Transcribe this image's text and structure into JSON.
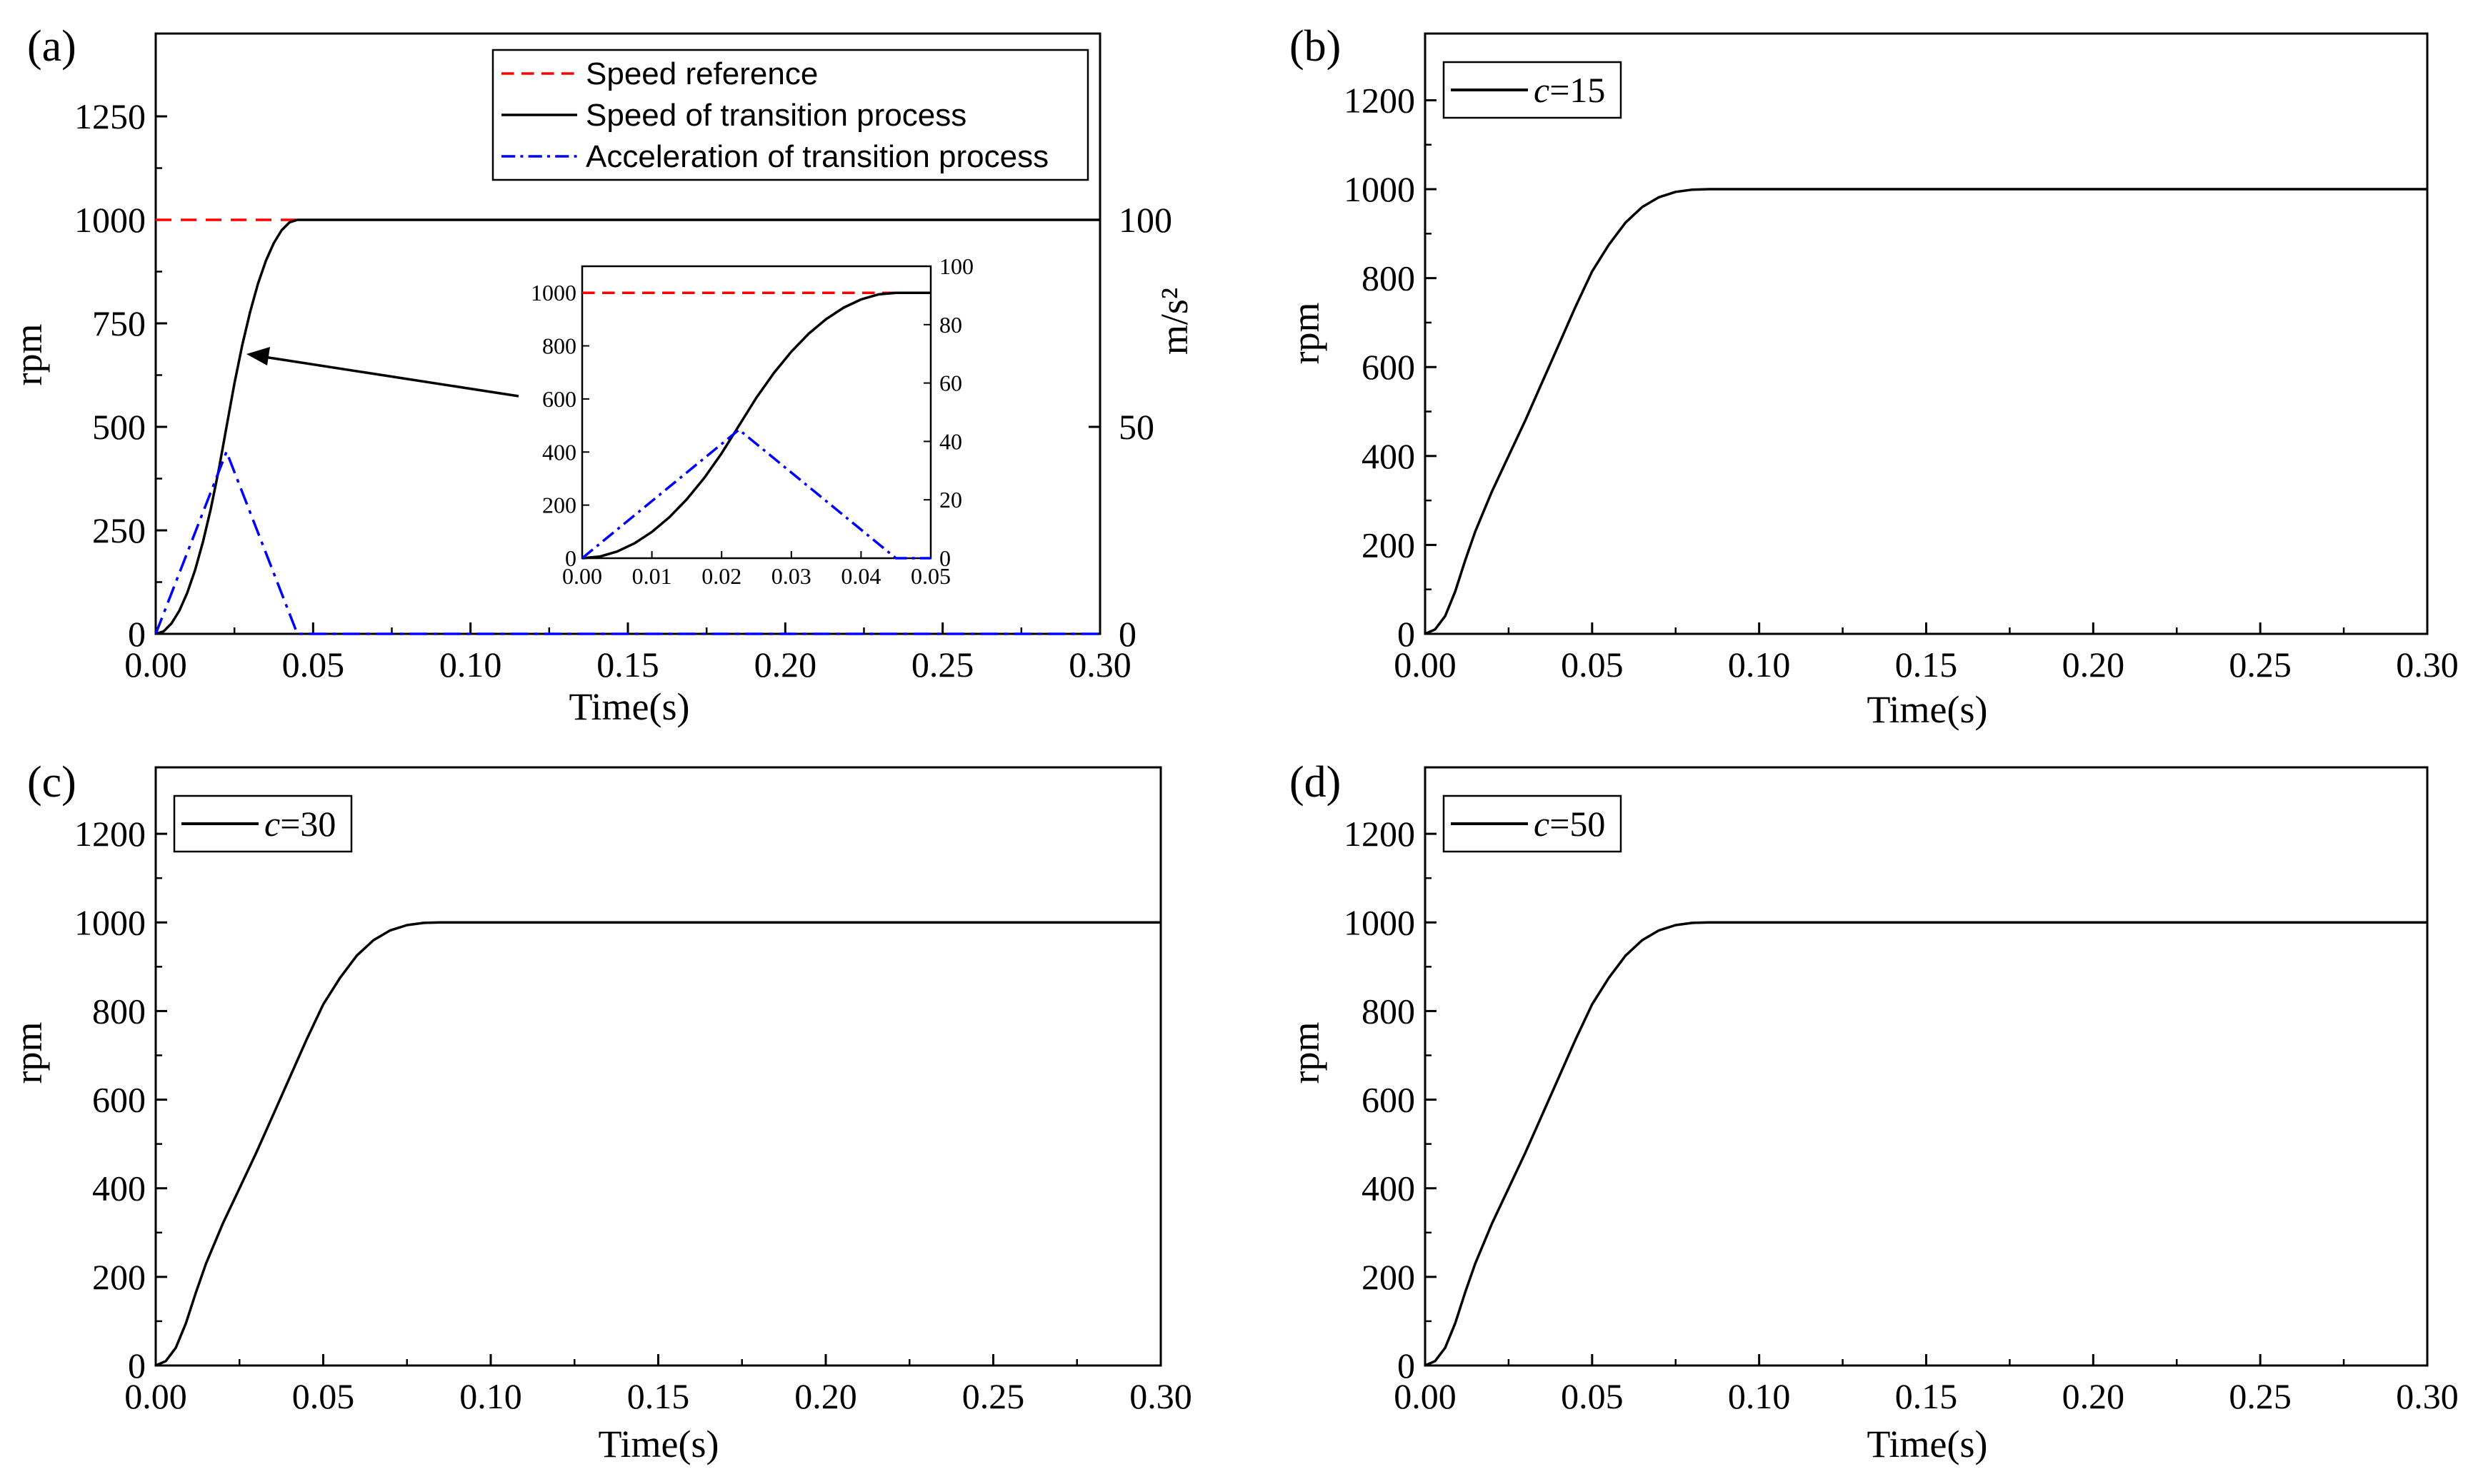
{
  "chart_data": [
    {
      "id": "a",
      "type": "line",
      "panel_label": "(a)",
      "xlabel": "Time(s)",
      "ylabel": "rpm",
      "ylabel_right": "m/s²",
      "xlim": [
        0,
        0.3
      ],
      "ylim": [
        0,
        1450
      ],
      "ylim_right": [
        0,
        145
      ],
      "x_ticks": [
        "0.00",
        "0.05",
        "0.10",
        "0.15",
        "0.20",
        "0.25",
        "0.30"
      ],
      "y_ticks": [
        "0",
        "250",
        "500",
        "750",
        "1000",
        "1250"
      ],
      "y_ticks_right": [
        "0",
        "50",
        "100"
      ],
      "legend": [
        "Speed reference",
        "Speed of transition process",
        "Acceleration of transition process"
      ],
      "series": [
        {
          "name": "Speed reference",
          "color": "#ff0000",
          "style": "dashed",
          "axis": "left",
          "x": [
            0,
            0.045
          ],
          "y": [
            1000,
            1000
          ]
        },
        {
          "name": "Speed of transition process",
          "color": "#000000",
          "style": "solid",
          "axis": "left",
          "x": [
            0,
            0.0025,
            0.005,
            0.0075,
            0.01,
            0.0125,
            0.015,
            0.0175,
            0.02,
            0.0225,
            0.025,
            0.0275,
            0.03,
            0.0325,
            0.035,
            0.0375,
            0.04,
            0.0425,
            0.045,
            0.3
          ],
          "y": [
            0,
            6,
            25,
            56,
            99,
            154,
            222,
            302,
            395,
            500,
            605,
            698,
            778,
            846,
            901,
            944,
            975,
            994,
            1000,
            1000
          ]
        },
        {
          "name": "Acceleration of transition process",
          "color": "#0000ff",
          "style": "dashdot",
          "axis": "right",
          "x": [
            0,
            0.0225,
            0.045,
            0.3
          ],
          "y": [
            0,
            44,
            0,
            0
          ]
        }
      ],
      "inset": {
        "xlim": [
          0,
          0.05
        ],
        "ylim": [
          0,
          1100
        ],
        "ylim_right": [
          0,
          100
        ],
        "x_ticks": [
          "0.00",
          "0.01",
          "0.02",
          "0.03",
          "0.04",
          "0.05"
        ],
        "y_ticks": [
          "0",
          "200",
          "400",
          "600",
          "800",
          "1000"
        ],
        "y_ticks_right": [
          "0",
          "20",
          "40",
          "60",
          "80",
          "100"
        ]
      }
    },
    {
      "id": "b",
      "type": "line",
      "panel_label": "(b)",
      "xlabel": "Time(s)",
      "ylabel": "rpm",
      "xlim": [
        0,
        0.3
      ],
      "ylim": [
        0,
        1350
      ],
      "x_ticks": [
        "0.00",
        "0.05",
        "0.10",
        "0.15",
        "0.20",
        "0.25",
        "0.30"
      ],
      "y_ticks": [
        "0",
        "200",
        "400",
        "600",
        "800",
        "1000",
        "1200"
      ],
      "legend_c": "c",
      "legend_value": "=15",
      "series": [
        {
          "name": "c=15",
          "color": "#000000",
          "style": "solid",
          "x": [
            0,
            0.003,
            0.006,
            0.009,
            0.012,
            0.015,
            0.02,
            0.025,
            0.03,
            0.035,
            0.04,
            0.045,
            0.05,
            0.055,
            0.06,
            0.065,
            0.07,
            0.075,
            0.08,
            0.085,
            0.09,
            0.3
          ],
          "y": [
            0,
            10,
            40,
            95,
            165,
            230,
            320,
            400,
            480,
            565,
            650,
            735,
            815,
            875,
            925,
            960,
            982,
            994,
            999,
            1000,
            1000,
            1000
          ]
        }
      ]
    },
    {
      "id": "c",
      "type": "line",
      "panel_label": "(c)",
      "xlabel": "Time(s)",
      "ylabel": "rpm",
      "xlim": [
        0,
        0.3
      ],
      "ylim": [
        0,
        1350
      ],
      "x_ticks": [
        "0.00",
        "0.05",
        "0.10",
        "0.15",
        "0.20",
        "0.25",
        "0.30"
      ],
      "y_ticks": [
        "0",
        "200",
        "400",
        "600",
        "800",
        "1000",
        "1200"
      ],
      "legend_c": "c",
      "legend_value": "=30",
      "series": [
        {
          "name": "c=30",
          "color": "#000000",
          "style": "solid",
          "x": [
            0,
            0.003,
            0.006,
            0.009,
            0.012,
            0.015,
            0.02,
            0.025,
            0.03,
            0.035,
            0.04,
            0.045,
            0.05,
            0.055,
            0.06,
            0.065,
            0.07,
            0.075,
            0.08,
            0.085,
            0.09,
            0.3
          ],
          "y": [
            0,
            10,
            40,
            95,
            165,
            230,
            320,
            400,
            480,
            565,
            650,
            735,
            815,
            875,
            925,
            960,
            982,
            994,
            999,
            1000,
            1000,
            1000
          ]
        }
      ]
    },
    {
      "id": "d",
      "type": "line",
      "panel_label": "(d)",
      "xlabel": "Time(s)",
      "ylabel": "rpm",
      "xlim": [
        0,
        0.3
      ],
      "ylim": [
        0,
        1350
      ],
      "x_ticks": [
        "0.00",
        "0.05",
        "0.10",
        "0.15",
        "0.20",
        "0.25",
        "0.30"
      ],
      "y_ticks": [
        "0",
        "200",
        "400",
        "600",
        "800",
        "1000",
        "1200"
      ],
      "legend_c": "c",
      "legend_value": "=50",
      "series": [
        {
          "name": "c=50",
          "color": "#000000",
          "style": "solid",
          "x": [
            0,
            0.003,
            0.006,
            0.009,
            0.012,
            0.015,
            0.02,
            0.025,
            0.03,
            0.035,
            0.04,
            0.045,
            0.05,
            0.055,
            0.06,
            0.065,
            0.07,
            0.075,
            0.08,
            0.085,
            0.09,
            0.3
          ],
          "y": [
            0,
            10,
            40,
            95,
            165,
            230,
            320,
            400,
            480,
            565,
            650,
            735,
            815,
            875,
            925,
            960,
            982,
            994,
            999,
            1000,
            1000,
            1000
          ]
        }
      ]
    }
  ]
}
